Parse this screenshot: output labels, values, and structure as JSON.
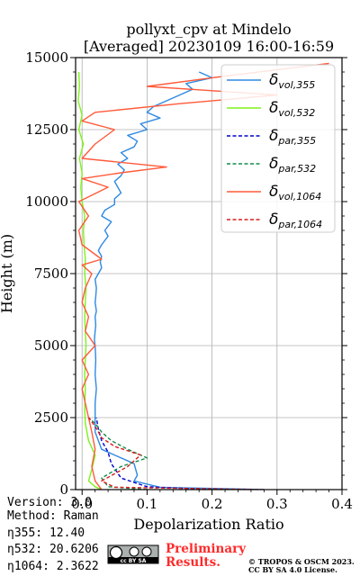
{
  "header": {
    "title_line1": "pollyxt_cpv at Mindelo",
    "title_line2": "[Averaged] 20230109 16:00-16:59"
  },
  "footer": {
    "version": "Version: 3.0",
    "method": "Method: Raman",
    "eta355": "η355:  12.40",
    "eta532": "η532: 20.6206",
    "eta1064": "η1064: 2.3622",
    "prelim_line1": "Preliminary",
    "prelim_line2": "Results.",
    "copyright_line1": "© TROPOS & OSCM 2023.",
    "copyright_line2": "CC BY SA 4.0 License.",
    "cc_badge": "cc BY SA"
  },
  "chart_data": {
    "type": "line",
    "title": "pollyxt_cpv at Mindelo [Averaged] 20230109 16:00-16:59",
    "xlabel": "Depolarization Ratio",
    "ylabel": "Height (m)",
    "xlim": [
      -0.01,
      0.4
    ],
    "ylim": [
      0,
      15000
    ],
    "xticks": [
      0.0,
      0.1,
      0.2,
      0.3,
      0.4
    ],
    "xtick_labels": [
      "0.0",
      "0.1",
      "0.2",
      "0.3",
      "0.4"
    ],
    "yticks": [
      0,
      2500,
      5000,
      7500,
      10000,
      12500,
      15000
    ],
    "ytick_labels": [
      "0",
      "2500",
      "5000",
      "7500",
      "10000",
      "12500",
      "15000"
    ],
    "grid": true,
    "legend_position": "top-right",
    "colors": {
      "vol355": "#2f8ae2",
      "vol532": "#7ff21a",
      "par355": "#0000cc",
      "par532": "#138b4a",
      "vol1064": "#ff5a3a",
      "par1064": "#d81e1e"
    },
    "series": [
      {
        "name": "δ_vol,355",
        "legend_sub": "vol,355",
        "color": "#2f8ae2",
        "style": "solid",
        "x": [
          0.28,
          0.12,
          0.08,
          0.085,
          0.08,
          0.05,
          0.03,
          0.025,
          0.02,
          0.02,
          0.02,
          0.022,
          0.02,
          0.021,
          0.02,
          0.019,
          0.02,
          0.021,
          0.02,
          0.022,
          0.02,
          0.021,
          0.022,
          0.02,
          0.025,
          0.03,
          0.028,
          0.03,
          0.025,
          0.03,
          0.04,
          0.035,
          0.045,
          0.03,
          0.035,
          0.05,
          0.05,
          0.06,
          0.055,
          0.05,
          0.06,
          0.065,
          0.055,
          0.07,
          0.06,
          0.08,
          0.085,
          0.07,
          0.1,
          0.09,
          0.12,
          0.1,
          0.11,
          0.13,
          0.15,
          0.17,
          0.16,
          0.2,
          0.18
        ],
        "y": [
          0,
          80,
          300,
          500,
          900,
          1200,
          1400,
          1700,
          2000,
          2500,
          3000,
          3500,
          4000,
          4500,
          5000,
          5200,
          5500,
          5700,
          6000,
          6200,
          6500,
          6700,
          7000,
          7300,
          7500,
          7700,
          7900,
          8100,
          8300,
          8500,
          8800,
          9000,
          9300,
          9500,
          9700,
          9900,
          10100,
          10300,
          10500,
          10700,
          10900,
          11100,
          11300,
          11500,
          11700,
          11900,
          12100,
          12300,
          12500,
          12700,
          12900,
          13100,
          13300,
          13500,
          13700,
          13900,
          14100,
          14300,
          14500
        ]
      },
      {
        "name": "δ_vol,532",
        "legend_sub": "vol,532",
        "color": "#7ff21a",
        "style": "solid",
        "x": [
          0.03,
          0.02,
          0.01,
          0.015,
          0.02,
          0.01,
          0.005,
          0.004,
          0.005,
          0.004,
          0.005,
          0.006,
          0.005,
          0.004,
          0.005,
          0.006,
          0.004,
          0.005,
          0.003,
          0.002,
          0.004,
          0.0,
          -0.002,
          0.0,
          -0.004,
          0.002,
          -0.005,
          0.0,
          -0.006,
          -0.004,
          -0.005
        ],
        "y": [
          0,
          100,
          300,
          700,
          1200,
          1700,
          2300,
          2800,
          3500,
          4000,
          4500,
          5000,
          5500,
          6000,
          6500,
          7000,
          7500,
          8000,
          8500,
          9000,
          9500,
          10000,
          10500,
          11000,
          11500,
          12000,
          12500,
          13000,
          13500,
          14000,
          14500
        ]
      },
      {
        "name": "δ_par,355",
        "legend_sub": "par,355",
        "color": "#0000cc",
        "style": "dashed",
        "x": [
          0.2,
          0.1,
          0.06,
          0.045,
          0.04,
          0.03,
          0.025,
          0.022
        ],
        "y": [
          0,
          100,
          400,
          900,
          1300,
          1700,
          2100,
          2500
        ]
      },
      {
        "name": "δ_par,532",
        "legend_sub": "par,532",
        "color": "#138b4a",
        "style": "dashed",
        "x": [
          0.1,
          0.04,
          0.03,
          0.06,
          0.1,
          0.07,
          0.045,
          0.03,
          0.02,
          0.01
        ],
        "y": [
          0,
          100,
          400,
          800,
          1100,
          1400,
          1700,
          2000,
          2300,
          2500
        ]
      },
      {
        "name": "δ_vol,1064",
        "legend_sub": "vol,1064",
        "color": "#ff5a3a",
        "style": "solid",
        "x": [
          0.03,
          0.02,
          0.015,
          0.02,
          0.015,
          0.01,
          0.005,
          0.0,
          0.01,
          0.0,
          0.02,
          0.005,
          0.01,
          0.0,
          0.005,
          0.015,
          0.0,
          0.03,
          0.0,
          -0.005,
          0.01,
          -0.005,
          0.04,
          0.0,
          0.06,
          0.13,
          0.0,
          0.02,
          0.05,
          0.0,
          0.02,
          0.15,
          0.3,
          0.1,
          0.2,
          0.38
        ],
        "y": [
          0,
          300,
          800,
          1400,
          2000,
          2500,
          3000,
          3500,
          4000,
          4500,
          5000,
          5500,
          6000,
          6500,
          7000,
          7500,
          7800,
          8000,
          8500,
          9000,
          9500,
          10000,
          10500,
          10800,
          11000,
          11200,
          11500,
          12000,
          12500,
          12800,
          13100,
          13400,
          13700,
          14000,
          14300,
          14800
        ]
      },
      {
        "name": "δ_par,1064",
        "legend_sub": "par,1064",
        "color": "#d81e1e",
        "style": "dashed",
        "x": [
          0.28,
          0.05,
          0.03,
          0.07,
          0.09,
          0.05,
          0.03,
          0.02,
          0.01
        ],
        "y": [
          0,
          80,
          300,
          800,
          1200,
          1500,
          1800,
          2200,
          2500
        ]
      }
    ]
  }
}
